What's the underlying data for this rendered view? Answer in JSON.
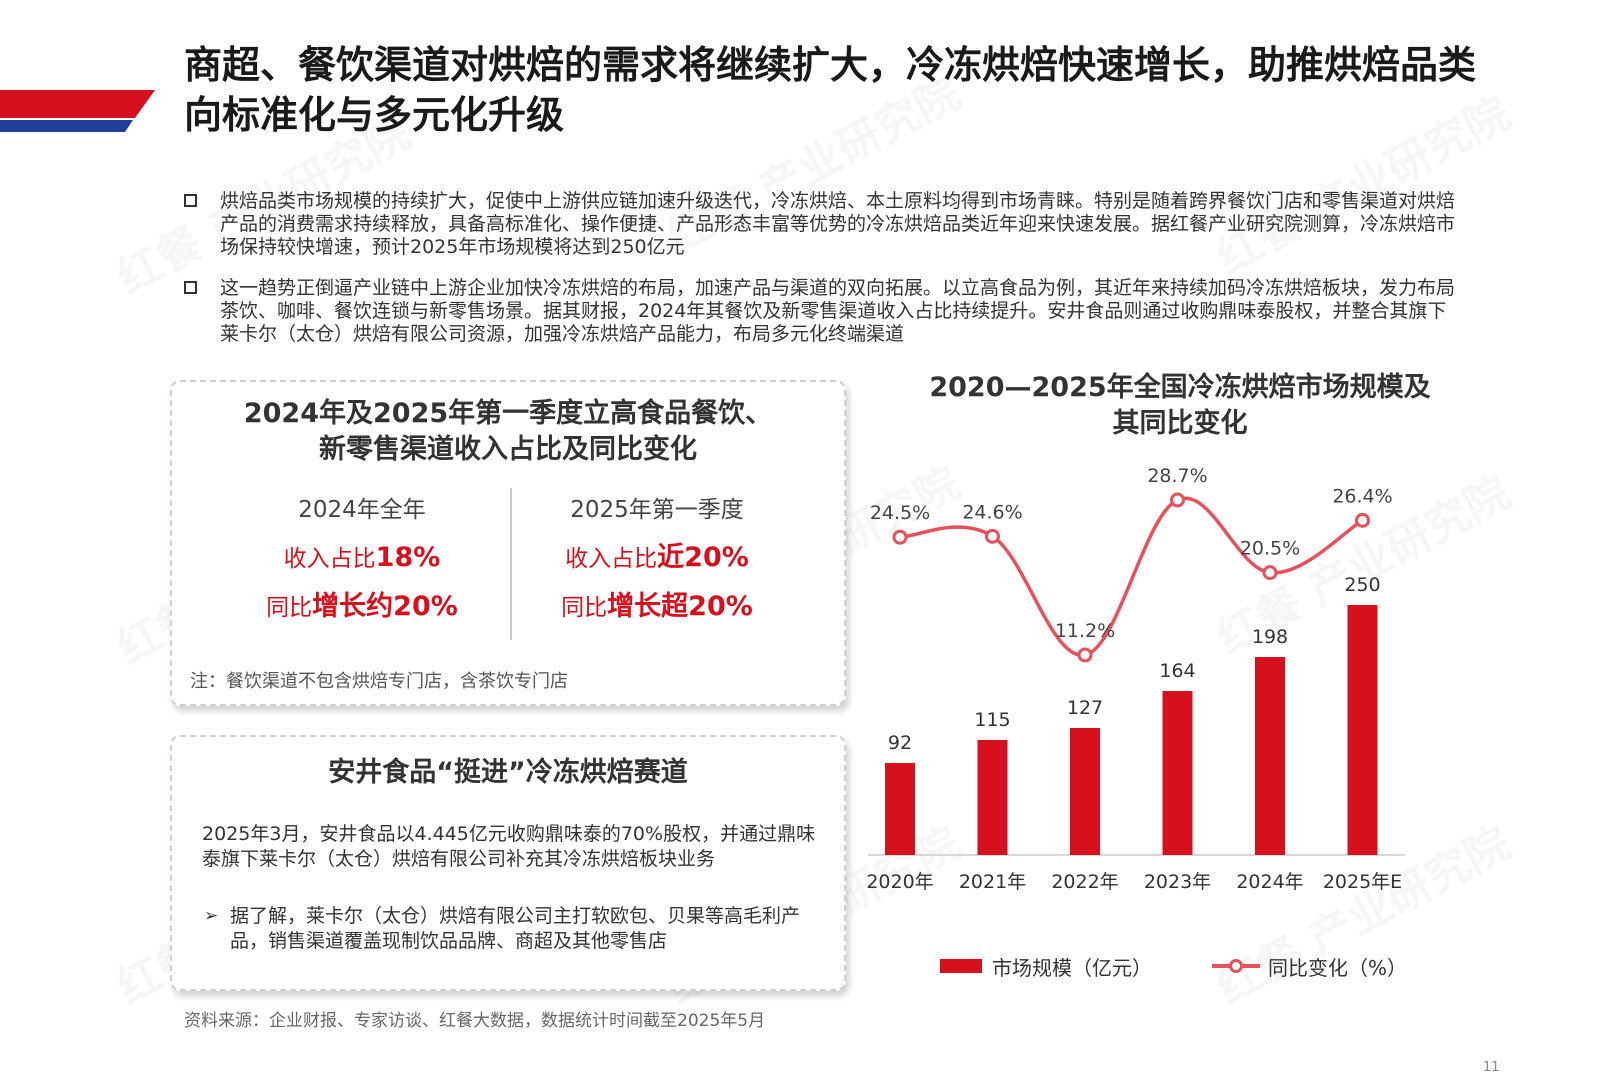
{
  "title": "商超、餐饮渠道对烘焙的需求将继续扩大，冷冻烘焙快速增长，助推烘焙品类向标准化与多元化升级",
  "bullets": [
    "烘焙品类市场规模的持续扩大，促使中上游供应链加速升级迭代，冷冻烘焙、本土原料均得到市场青睐。特别是随着跨界餐饮门店和零售渠道对烘焙产品的消费需求持续释放，具备高标准化、操作便捷、产品形态丰富等优势的冷冻烘焙品类近年迎来快速发展。据红餐产业研究院测算，冷冻烘焙市场保持较快增速，预计2025年市场规模将达到250亿元",
    "这一趋势正倒逼产业链中上游企业加快冷冻烘焙的布局，加速产品与渠道的双向拓展。以立高食品为例，其近年来持续加码冷冻烘焙板块，发力布局茶饮、咖啡、餐饮连锁与新零售场景。据其财报，2024年其餐饮及新零售渠道收入占比持续提升。安井食品则通过收购鼎味泰股权，并整合其旗下莱卡尔（太仓）烘焙有限公司资源，加强冷冻烘焙产品能力，布局多元化终端渠道"
  ],
  "panel_a": {
    "title_line1": "2024年及2025年第一季度立高食品餐饮、",
    "title_line2": "新零售渠道收入占比及同比变化",
    "left": {
      "heading": "2024年全年",
      "share_prefix": "收入占比",
      "share_value": "18%",
      "growth_prefix": "同比",
      "growth_value": "增长约20%"
    },
    "right": {
      "heading": "2025年第一季度",
      "share_prefix": "收入占比",
      "share_value": "近20%",
      "growth_prefix": "同比",
      "growth_value": "增长超20%"
    },
    "note": "注：餐饮渠道不包含烘焙专门店，含茶饮专门店"
  },
  "panel_b": {
    "title": "安井食品“挺进”冷冻烘焙赛道",
    "body": "2025年3月，安井食品以4.445亿元收购鼎味泰的70%股权，并通过鼎味泰旗下莱卡尔（太仓）烘焙有限公司补充其冷冻烘焙板块业务",
    "sub_point": "据了解，莱卡尔（太仓）烘焙有限公司主打软欧包、贝果等高毛利产品，销售渠道覆盖现制饮品品牌、商超及其他零售店"
  },
  "source": "资料来源：企业财报、专家访谈、红餐大数据，数据统计时间截至2025年5月",
  "page_number": "11",
  "watermark": "红餐 产业研究院",
  "colors": {
    "accent_red": "#d7101e",
    "line_red": "#e8505b",
    "accent_blue": "#1f3f9a"
  },
  "chart_data": {
    "type": "bar+line",
    "title_line1": "2020—2025年全国冷冻烘焙市场规模及",
    "title_line2": "其同比变化",
    "categories": [
      "2020年",
      "2021年",
      "2022年",
      "2023年",
      "2024年",
      "2025年E"
    ],
    "series": [
      {
        "name": "市场规模（亿元）",
        "type": "bar",
        "values": [
          92,
          115,
          127,
          164,
          198,
          250
        ],
        "labels": [
          "92",
          "115",
          "127",
          "164",
          "198",
          "250"
        ]
      },
      {
        "name": "同比变化（%）",
        "type": "line",
        "values": [
          24.5,
          24.6,
          11.2,
          28.7,
          20.5,
          26.4
        ],
        "labels": [
          "24.5%",
          "24.6%",
          "11.2%",
          "28.7%",
          "20.5%",
          "26.4%"
        ]
      }
    ],
    "legend_position": "bottom",
    "grid": false
  }
}
